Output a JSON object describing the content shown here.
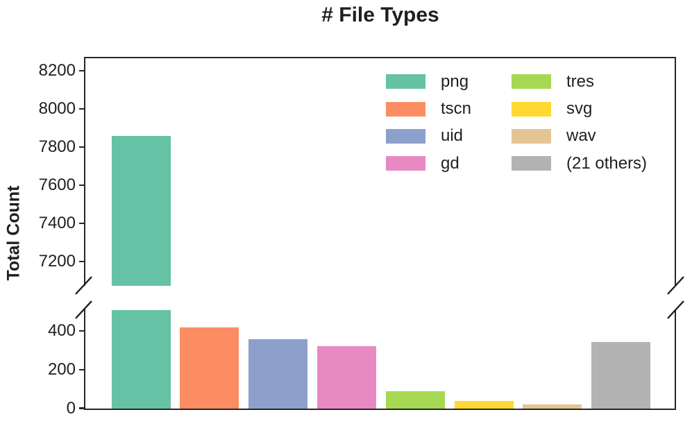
{
  "chart_data": {
    "type": "bar",
    "title": "# File Types",
    "xlabel": "",
    "ylabel": "Total Count",
    "broken_axis": true,
    "grid": false,
    "categories": [
      "png",
      "tscn",
      "uid",
      "gd",
      "tres",
      "svg",
      "wav",
      "(21 others)"
    ],
    "values": [
      7860,
      420,
      358,
      325,
      90,
      38,
      22,
      345
    ],
    "bar_colors": [
      "#66c2a5",
      "#fc8d62",
      "#8da0cb",
      "#e78ac3",
      "#a6d854",
      "#ffd92f",
      "#e5c494",
      "#b3b3b3"
    ],
    "top_panel": {
      "ylim": [
        7075,
        8265
      ],
      "yticks": [
        8200,
        8000,
        7800,
        7600,
        7400,
        7200
      ]
    },
    "bottom_panel": {
      "ylim": [
        0,
        512
      ],
      "yticks": [
        400,
        200,
        0
      ]
    },
    "xticklabels": [],
    "legend": {
      "position": "upper-right",
      "columns": 2,
      "entries": [
        "png",
        "tscn",
        "uid",
        "gd",
        "tres",
        "svg",
        "wav",
        "(21 others)"
      ]
    },
    "colors": {
      "text": "#1f1f1f",
      "spine": "#262626",
      "background": "#ffffff"
    }
  }
}
